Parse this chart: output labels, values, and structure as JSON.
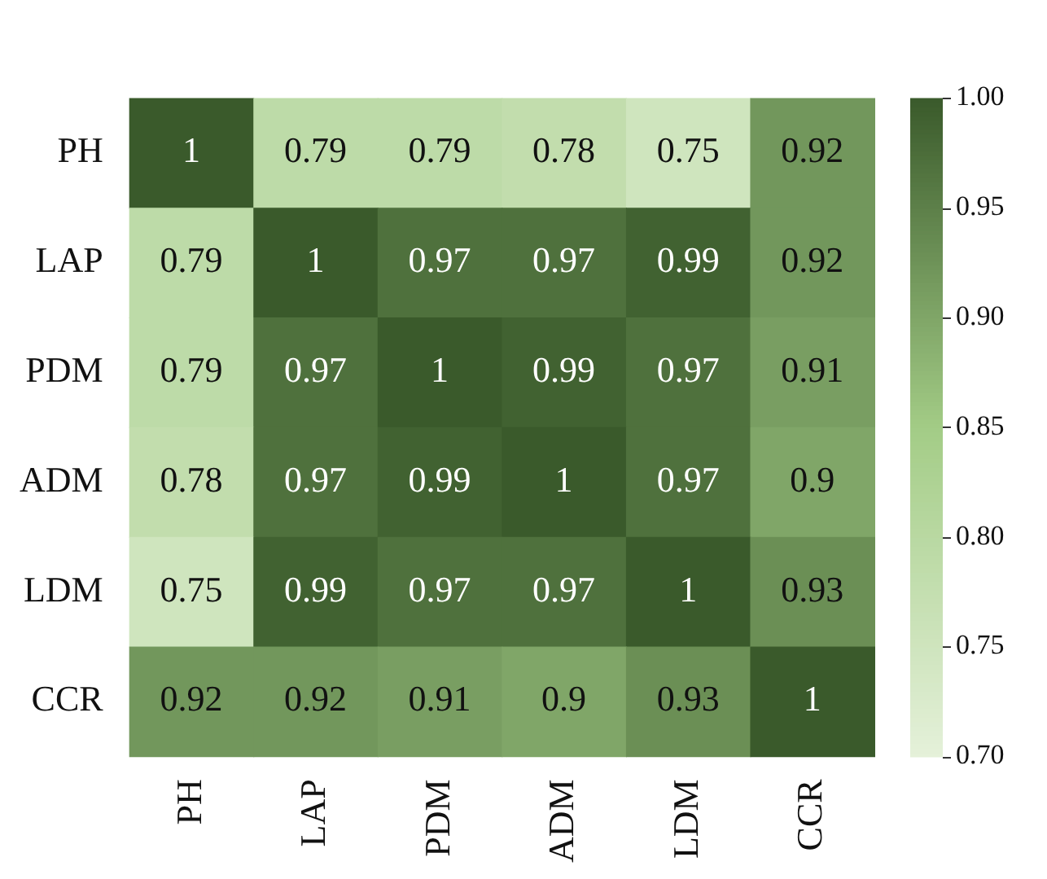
{
  "chart_data": {
    "type": "heatmap",
    "categories": [
      "PH",
      "LAP",
      "PDM",
      "ADM",
      "LDM",
      "CCR"
    ],
    "y_categories": [
      "PH",
      "LAP",
      "PDM",
      "ADM",
      "LDM",
      "CCR"
    ],
    "cells": [
      [
        1,
        0.79,
        0.79,
        0.78,
        0.75,
        0.92
      ],
      [
        0.79,
        1,
        0.97,
        0.97,
        0.99,
        0.92
      ],
      [
        0.79,
        0.97,
        1,
        0.99,
        0.97,
        0.91
      ],
      [
        0.78,
        0.97,
        0.99,
        1,
        0.97,
        0.9
      ],
      [
        0.75,
        0.99,
        0.97,
        0.97,
        1,
        0.93
      ],
      [
        0.92,
        0.92,
        0.91,
        0.9,
        0.93,
        1
      ]
    ],
    "data_labels": true,
    "clim": [
      0.7,
      1.0
    ],
    "cticks": [
      {
        "value": 0.7,
        "label": "0.70"
      },
      {
        "value": 0.75,
        "label": "0.75"
      },
      {
        "value": 0.8,
        "label": "0.80"
      },
      {
        "value": 0.85,
        "label": "0.85"
      },
      {
        "value": 0.9,
        "label": "0.90"
      },
      {
        "value": 0.95,
        "label": "0.95"
      },
      {
        "value": 1.0,
        "label": "1.00"
      }
    ]
  }
}
